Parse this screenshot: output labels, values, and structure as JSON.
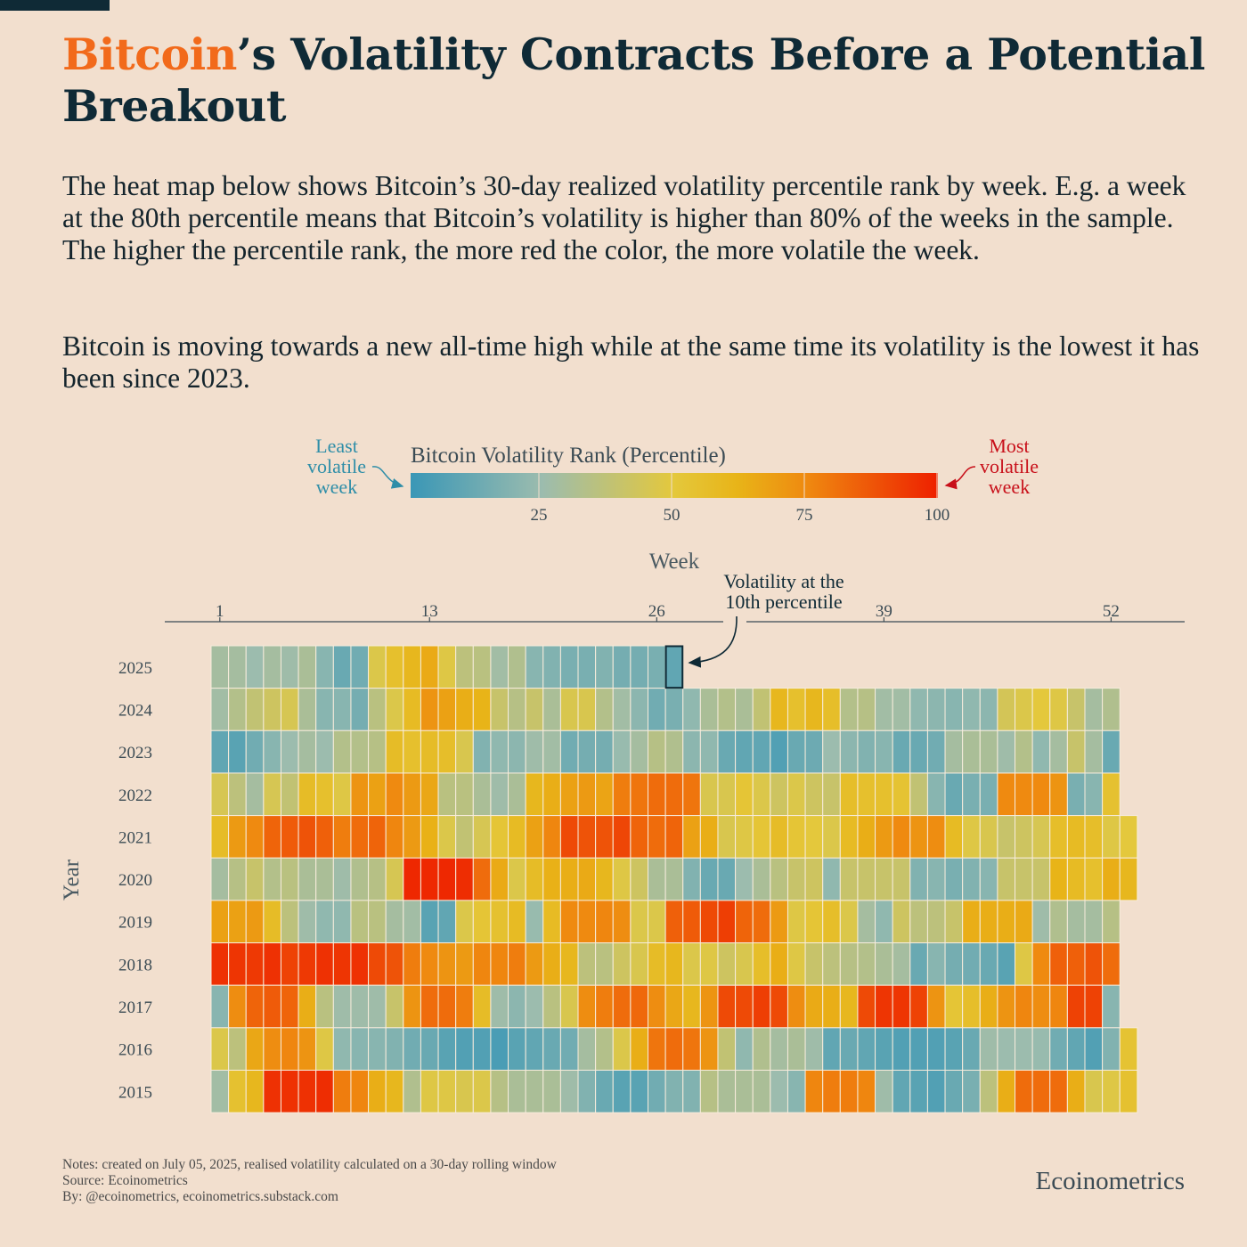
{
  "title": {
    "accent": "Bitcoin",
    "rest": "’s Volatility Contracts Before a Potential Breakout"
  },
  "description": [
    "The heat map below shows Bitcoin’s 30-day realized volatility percentile rank by week. E.g. a week at the 80th percentile means that Bitcoin’s volatility is higher than 80% of the weeks in the sample. The higher the percentile rank, the more red the color, the more volatile the week.",
    "Bitcoin is moving towards a new all-time high while at the same time its volatility is the lowest it has been since 2023."
  ],
  "colors": {
    "accent": "#f26a1b",
    "title": "#0f2a36",
    "low": "#3a97b6",
    "mid": "#e4c83c",
    "high": "#ee2000",
    "least_label": "#2f8ea8",
    "most_label": "#c8101a"
  },
  "legend": {
    "title": "Bitcoin Volatility Rank (Percentile)",
    "ticks": [
      "25",
      "50",
      "75",
      "100"
    ],
    "least": [
      "Least",
      "volatile",
      "week"
    ],
    "most": [
      "Most",
      "volatile",
      "week"
    ]
  },
  "annotation": {
    "lines": [
      "Volatility at the",
      "10th percentile"
    ],
    "year": "2025",
    "week": 27
  },
  "chart_data": {
    "type": "heatmap",
    "xlabel": "Week",
    "ylabel": "Year",
    "x_ticks": [
      1,
      13,
      26,
      39,
      52
    ],
    "value_range": [
      0,
      100
    ],
    "years": [
      "2025",
      "2024",
      "2023",
      "2022",
      "2021",
      "2020",
      "2019",
      "2018",
      "2017",
      "2016",
      "2015"
    ],
    "values": {
      "2025": [
        28,
        28,
        25,
        28,
        26,
        30,
        20,
        12,
        14,
        47,
        55,
        60,
        65,
        48,
        36,
        35,
        27,
        32,
        20,
        18,
        16,
        16,
        18,
        15,
        15,
        16,
        10
      ],
      "2024": [
        27,
        33,
        38,
        42,
        45,
        30,
        20,
        20,
        15,
        35,
        47,
        58,
        72,
        68,
        64,
        62,
        40,
        34,
        40,
        30,
        46,
        46,
        33,
        27,
        21,
        14,
        16,
        22,
        30,
        33,
        30,
        38,
        60,
        55,
        60,
        56,
        33,
        34,
        27,
        27,
        22,
        21,
        20,
        22,
        21,
        44,
        47,
        50,
        48,
        40,
        28,
        32
      ],
      "2023": [
        10,
        8,
        14,
        20,
        25,
        28,
        25,
        33,
        33,
        34,
        57,
        55,
        57,
        56,
        46,
        18,
        22,
        21,
        26,
        27,
        14,
        15,
        15,
        24,
        28,
        34,
        32,
        21,
        22,
        12,
        10,
        10,
        6,
        12,
        13,
        25,
        21,
        18,
        20,
        12,
        12,
        14,
        28,
        30,
        30,
        26,
        33,
        22,
        28,
        40,
        28,
        12
      ],
      "2022": [
        45,
        36,
        28,
        45,
        38,
        57,
        55,
        48,
        72,
        68,
        75,
        70,
        66,
        35,
        35,
        30,
        26,
        30,
        60,
        64,
        68,
        70,
        67,
        78,
        80,
        82,
        82,
        80,
        46,
        46,
        52,
        47,
        42,
        47,
        42,
        40,
        56,
        55,
        55,
        53,
        38,
        20,
        12,
        16,
        16,
        75,
        75,
        75,
        72,
        16,
        20,
        54
      ],
      "2021": [
        57,
        70,
        75,
        84,
        86,
        88,
        85,
        78,
        82,
        84,
        76,
        70,
        63,
        47,
        38,
        45,
        52,
        58,
        68,
        76,
        90,
        88,
        88,
        91,
        84,
        82,
        84,
        68,
        64,
        46,
        48,
        52,
        57,
        52,
        50,
        47,
        58,
        64,
        70,
        75,
        72,
        74,
        58,
        48,
        46,
        40,
        42,
        45,
        56,
        58,
        56,
        48,
        50
      ],
      "2020": [
        28,
        34,
        40,
        33,
        35,
        30,
        30,
        26,
        32,
        34,
        45,
        98,
        98,
        98,
        97,
        82,
        65,
        47,
        57,
        63,
        64,
        65,
        60,
        48,
        42,
        30,
        30,
        18,
        12,
        12,
        25,
        30,
        35,
        40,
        42,
        22,
        40,
        40,
        40,
        40,
        18,
        20,
        16,
        18,
        20,
        40,
        40,
        40,
        62,
        58,
        55,
        64,
        60
      ],
      "2019": [
        68,
        68,
        70,
        57,
        36,
        26,
        22,
        22,
        35,
        35,
        28,
        27,
        8,
        10,
        47,
        52,
        54,
        58,
        24,
        58,
        75,
        75,
        76,
        74,
        47,
        47,
        85,
        86,
        90,
        93,
        84,
        82,
        70,
        48,
        52,
        56,
        47,
        28,
        22,
        42,
        36,
        36,
        40,
        64,
        64,
        64,
        65,
        26,
        32,
        28,
        28,
        34
      ],
      "2018": [
        96,
        95,
        94,
        96,
        92,
        94,
        96,
        95,
        96,
        90,
        88,
        78,
        75,
        72,
        70,
        76,
        76,
        78,
        70,
        64,
        60,
        36,
        35,
        42,
        46,
        57,
        60,
        47,
        48,
        42,
        46,
        56,
        64,
        48,
        40,
        36,
        34,
        33,
        30,
        28,
        12,
        20,
        15,
        14,
        12,
        8,
        48,
        75,
        85,
        85,
        88,
        82
      ],
      "2017": [
        20,
        74,
        84,
        86,
        84,
        64,
        35,
        26,
        26,
        26,
        40,
        72,
        82,
        82,
        78,
        57,
        26,
        21,
        25,
        35,
        46,
        74,
        78,
        82,
        83,
        74,
        66,
        60,
        72,
        90,
        90,
        93,
        90,
        74,
        65,
        64,
        60,
        90,
        95,
        95,
        92,
        72,
        52,
        56,
        64,
        72,
        76,
        74,
        76,
        92,
        92,
        20
      ],
      "2016": [
        47,
        36,
        66,
        74,
        76,
        72,
        48,
        22,
        20,
        20,
        18,
        14,
        12,
        8,
        6,
        6,
        4,
        8,
        10,
        12,
        14,
        28,
        33,
        47,
        64,
        80,
        82,
        80,
        72,
        38,
        22,
        32,
        28,
        30,
        26,
        10,
        12,
        10,
        8,
        6,
        6,
        6,
        8,
        12,
        26,
        25,
        25,
        24,
        14,
        10,
        6,
        18,
        53
      ],
      "2015": [
        27,
        54,
        60,
        96,
        96,
        96,
        97,
        78,
        76,
        64,
        60,
        32,
        48,
        48,
        46,
        47,
        34,
        30,
        30,
        30,
        26,
        18,
        12,
        8,
        8,
        14,
        18,
        18,
        34,
        30,
        30,
        30,
        25,
        20,
        76,
        78,
        78,
        76,
        26,
        10,
        8,
        6,
        12,
        16,
        36,
        64,
        82,
        82,
        82,
        64,
        46,
        48,
        54
      ]
    }
  },
  "footer": {
    "notes": "Notes: created on July 05, 2025, realised volatility calculated on a 30-day rolling window",
    "source": "Source: Ecoinometrics",
    "by": "By: @ecoinometrics, ecoinometrics.substack.com",
    "brand": "Ecoinometrics"
  }
}
